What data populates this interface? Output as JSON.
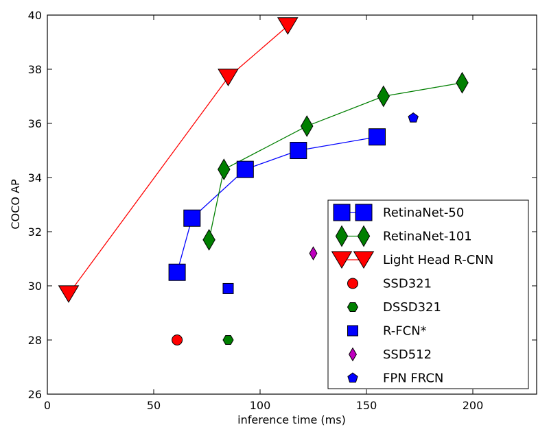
{
  "chart_data": {
    "type": "scatter",
    "title": "",
    "xlabel": "inference time (ms)",
    "ylabel": "COCO AP",
    "xlim": [
      0,
      230
    ],
    "ylim": [
      26,
      40
    ],
    "xticks": [
      0,
      50,
      100,
      150,
      200
    ],
    "yticks": [
      26,
      28,
      30,
      32,
      34,
      36,
      38,
      40
    ],
    "grid": false,
    "legend_position": "bottom-right",
    "series": [
      {
        "name": "RetinaNet-50",
        "marker": "square",
        "color": "#0000ff",
        "line": true,
        "big": true,
        "points": [
          [
            61,
            30.5
          ],
          [
            68,
            32.5
          ],
          [
            93,
            34.3
          ],
          [
            118,
            35.0
          ],
          [
            155,
            35.5
          ]
        ]
      },
      {
        "name": "RetinaNet-101",
        "marker": "diamond",
        "color": "#007f00",
        "line": true,
        "big": true,
        "points": [
          [
            76,
            31.7
          ],
          [
            83,
            34.3
          ],
          [
            122,
            35.9
          ],
          [
            158,
            37.0
          ],
          [
            195,
            37.5
          ]
        ]
      },
      {
        "name": "Light Head R-CNN",
        "marker": "triangle-down",
        "color": "#ff0000",
        "line": true,
        "big": true,
        "points": [
          [
            10,
            29.7
          ],
          [
            85,
            37.7
          ],
          [
            113,
            39.6
          ]
        ]
      },
      {
        "name": "SSD321",
        "marker": "circle",
        "color": "#ff0000",
        "line": false,
        "big": false,
        "points": [
          [
            61,
            28.0
          ]
        ]
      },
      {
        "name": "DSSD321",
        "marker": "hexagon",
        "color": "#007f00",
        "line": false,
        "big": false,
        "points": [
          [
            85,
            28.0
          ]
        ]
      },
      {
        "name": "R-FCN*",
        "marker": "square",
        "color": "#0000ff",
        "line": false,
        "big": false,
        "points": [
          [
            85,
            29.9
          ]
        ]
      },
      {
        "name": "SSD512",
        "marker": "diamond",
        "color": "#bf00bf",
        "line": false,
        "big": false,
        "points": [
          [
            125,
            31.2
          ]
        ]
      },
      {
        "name": "FPN FRCN",
        "marker": "pentagon",
        "color": "#0000ff",
        "line": false,
        "big": false,
        "points": [
          [
            172,
            36.2
          ]
        ]
      }
    ]
  }
}
